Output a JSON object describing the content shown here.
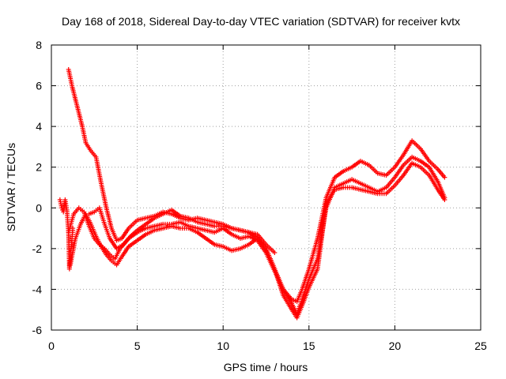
{
  "chart_data": {
    "type": "scatter",
    "title": "Day 168 of 2018, Sidereal Day-to-day VTEC variation (SDTVAR) for receiver kvtx",
    "xlabel": "GPS time / hours",
    "ylabel": "SDTVAR / TECUs",
    "xlim": [
      0,
      25
    ],
    "ylim": [
      -6,
      8
    ],
    "xticks": [
      "0",
      "5",
      "10",
      "15",
      "20",
      "25"
    ],
    "yticks": [
      "-6",
      "-4",
      "-2",
      "0",
      "2",
      "4",
      "6",
      "8"
    ],
    "grid": true,
    "marker": "plus",
    "color": "#ff0000",
    "series": [
      {
        "name": "track-a",
        "x": [
          1.0,
          1.2,
          1.5,
          1.8,
          2.0,
          2.3,
          2.6,
          2.9,
          3.2,
          3.5,
          3.8,
          4.1,
          4.5,
          5.0,
          5.5,
          6.0,
          6.5,
          7.0,
          7.5,
          8.0,
          8.5,
          9.0,
          9.5,
          10.0,
          10.5,
          11.0,
          11.5,
          12.0,
          12.5,
          13.0,
          13.5,
          14.0,
          14.3,
          14.6,
          15.0,
          15.5,
          16.0,
          16.5,
          17.0,
          17.5,
          18.0,
          18.5,
          19.0,
          19.5,
          20.0,
          20.5,
          21.0,
          21.5,
          22.0,
          22.5,
          22.9
        ],
        "y": [
          6.8,
          6.0,
          5.0,
          4.0,
          3.2,
          2.8,
          2.5,
          1.2,
          0.0,
          -1.0,
          -1.6,
          -1.5,
          -1.0,
          -0.6,
          -0.5,
          -0.4,
          -0.2,
          -0.3,
          -0.5,
          -0.6,
          -0.5,
          -0.6,
          -0.7,
          -0.8,
          -1.0,
          -1.1,
          -1.2,
          -1.5,
          -2.0,
          -3.0,
          -4.0,
          -4.5,
          -4.6,
          -4.0,
          -3.0,
          -1.5,
          0.5,
          1.5,
          1.8,
          2.0,
          2.3,
          2.1,
          1.7,
          1.6,
          2.0,
          2.6,
          3.3,
          2.9,
          2.3,
          1.9,
          1.5
        ]
      },
      {
        "name": "track-b",
        "x": [
          1.0,
          1.3,
          1.6,
          1.9,
          2.2,
          2.5,
          2.8,
          3.1,
          3.4,
          3.7,
          4.0,
          4.5,
          5.0,
          5.5,
          6.0,
          6.5,
          7.0,
          7.5,
          8.0,
          8.5,
          9.0,
          9.5,
          10.0,
          10.5,
          11.0,
          11.5,
          12.0,
          12.5,
          13.0,
          13.5,
          14.0,
          14.3,
          14.6,
          15.0,
          15.5,
          16.0,
          16.5,
          17.0,
          17.5,
          18.0,
          18.5,
          19.0,
          19.5,
          20.0,
          20.5,
          21.0,
          21.5,
          22.0,
          22.5,
          22.9
        ],
        "y": [
          -1.2,
          -0.3,
          0.0,
          -0.2,
          -0.9,
          -1.5,
          -1.8,
          -2.0,
          -2.3,
          -2.5,
          -2.0,
          -1.5,
          -1.2,
          -1.0,
          -0.9,
          -0.8,
          -0.8,
          -0.7,
          -0.9,
          -1.0,
          -1.1,
          -1.2,
          -1.0,
          -1.3,
          -1.5,
          -1.4,
          -1.6,
          -2.2,
          -3.1,
          -4.0,
          -4.7,
          -5.2,
          -4.5,
          -3.5,
          -2.5,
          0.0,
          1.0,
          1.2,
          1.4,
          1.2,
          1.0,
          0.8,
          1.0,
          1.5,
          2.1,
          2.5,
          2.3,
          2.0,
          1.3,
          0.5
        ]
      },
      {
        "name": "track-c",
        "x": [
          1.1,
          1.4,
          1.7,
          2.0,
          2.3,
          2.6,
          2.9,
          3.2,
          3.5,
          3.8,
          4.1,
          4.5,
          5.0,
          5.5,
          6.0,
          6.5,
          7.0,
          7.5,
          8.0,
          8.5,
          9.0,
          9.5,
          10.0,
          10.5,
          11.0,
          11.5,
          12.0,
          12.5,
          13.0,
          13.5,
          14.0,
          14.3,
          14.6,
          15.0,
          15.5,
          16.0,
          16.5,
          17.0,
          17.5,
          18.0,
          18.5,
          19.0,
          19.5,
          20.0,
          20.5,
          21.0,
          21.5,
          22.0,
          22.5,
          22.9
        ],
        "y": [
          -2.8,
          -1.5,
          -0.8,
          -0.3,
          -0.8,
          -1.4,
          -1.9,
          -2.3,
          -2.6,
          -2.8,
          -2.4,
          -1.9,
          -1.6,
          -1.3,
          -1.1,
          -1.0,
          -0.9,
          -1.0,
          -1.0,
          -1.2,
          -1.5,
          -1.8,
          -1.9,
          -2.1,
          -2.0,
          -1.8,
          -1.5,
          -2.0,
          -3.0,
          -4.3,
          -5.0,
          -5.4,
          -4.8,
          -3.9,
          -3.0,
          0.2,
          0.9,
          1.0,
          1.0,
          0.9,
          0.8,
          0.7,
          0.7,
          1.1,
          1.6,
          2.2,
          2.0,
          1.6,
          0.9,
          0.4
        ]
      },
      {
        "name": "track-d",
        "x": [
          2.2,
          2.5,
          2.8,
          3.1,
          3.4,
          3.8,
          4.2,
          4.6,
          5.0,
          5.5,
          6.0,
          6.5,
          7.0,
          7.5,
          8.0,
          8.5,
          9.0,
          9.5,
          10.0,
          10.5,
          11.0,
          11.5,
          12.0,
          12.5,
          13.0
        ],
        "y": [
          -0.3,
          -0.2,
          0.0,
          -0.8,
          -1.5,
          -2.0,
          -1.8,
          -1.4,
          -1.1,
          -0.8,
          -0.5,
          -0.3,
          -0.1,
          -0.4,
          -0.5,
          -0.7,
          -0.8,
          -0.9,
          -0.9,
          -1.0,
          -1.1,
          -1.2,
          -1.3,
          -1.8,
          -2.2
        ]
      },
      {
        "name": "early-cluster",
        "x": [
          0.5,
          0.6,
          0.7,
          0.8,
          0.9,
          1.0,
          1.05,
          1.1,
          1.15,
          1.2,
          1.25
        ],
        "y": [
          0.4,
          0.0,
          -0.2,
          0.4,
          -0.1,
          -1.2,
          -3.0,
          -2.5,
          -2.0,
          -1.5,
          -1.0
        ]
      }
    ]
  }
}
